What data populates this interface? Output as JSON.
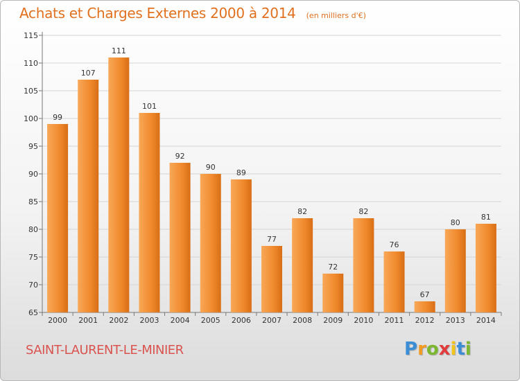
{
  "chart_data": {
    "type": "bar",
    "title": "Achats et Charges Externes 2000 à 2014",
    "subtitle": "(en milliers d'€)",
    "categories": [
      "2000",
      "2001",
      "2002",
      "2003",
      "2004",
      "2005",
      "2006",
      "2007",
      "2008",
      "2009",
      "2010",
      "2011",
      "2012",
      "2013",
      "2014"
    ],
    "values": [
      99,
      107,
      111,
      101,
      92,
      90,
      89,
      77,
      82,
      72,
      82,
      76,
      67,
      80,
      81
    ],
    "data_labels": [
      "99",
      "107",
      "111",
      "101",
      "92",
      "90",
      "89",
      "77",
      "82",
      "72",
      "82",
      "76",
      "67",
      "80",
      "81"
    ],
    "ylim": [
      65,
      115
    ],
    "yticks": [
      65,
      70,
      75,
      80,
      85,
      90,
      95,
      100,
      105,
      110,
      115
    ],
    "ytick_labels": [
      "65",
      "70",
      "75",
      "80",
      "85",
      "90",
      "95",
      "100",
      "105",
      "110",
      "115"
    ],
    "xlabel": "",
    "ylabel": "",
    "grid": true,
    "bar_color": "#f0892c",
    "bar_highlight_color": "#f8a858",
    "bar_shadow_color": "#d86e16",
    "title_color": "#e0701e"
  },
  "footer": {
    "commune": "SAINT-LAURENT-LE-MINIER",
    "commune_color": "#d9534f"
  },
  "logo": {
    "text": "Proxiti",
    "letters": [
      "P",
      "r",
      "o",
      "x",
      "i",
      "t",
      "i"
    ],
    "letter_colors": [
      "#3b8ed6",
      "#f29b1e",
      "#7cb82f",
      "#e23b3b",
      "#f0c419",
      "#3b8ed6",
      "#7cb82f"
    ]
  }
}
